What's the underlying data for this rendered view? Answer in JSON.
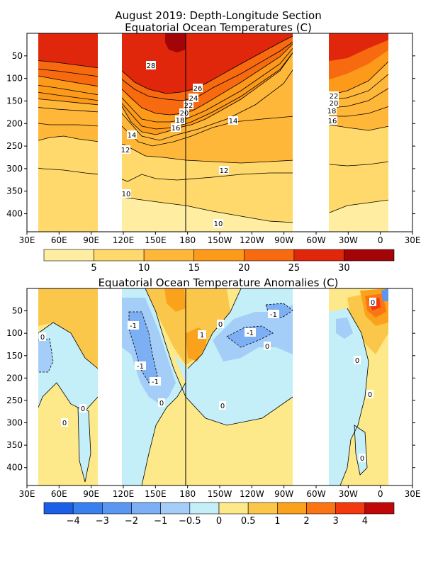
{
  "chart_data": [
    {
      "type": "heatmap",
      "title": "August 2019: Depth-Longitude Section",
      "subtitle": "Equatorial Ocean Temperatures (C)",
      "xlabel": "",
      "ylabel": "",
      "x_ticks": [
        "30E",
        "60E",
        "90E",
        "120E",
        "150E",
        "180",
        "150W",
        "120W",
        "90W",
        "60W",
        "30W",
        "0",
        "30E"
      ],
      "y_ticks": [
        "50",
        "100",
        "150",
        "200",
        "250",
        "300",
        "350",
        "400"
      ],
      "y_range": [
        0,
        440
      ],
      "x_range_lon_east": [
        30,
        390
      ],
      "land_gaps_lon_east": [
        [
          100,
          119
        ],
        [
          283,
          320
        ]
      ],
      "data_extent_lon_east": [
        45,
        354
      ],
      "colorbar": {
        "levels": [
          "5",
          "10",
          "15",
          "20",
          "25",
          "30"
        ],
        "colors": [
          "#ffeea2",
          "#ffd96b",
          "#ffb73a",
          "#fd9a1a",
          "#f76a10",
          "#e0260b",
          "#a30408"
        ]
      },
      "contour_labels": [
        "28",
        "26",
        "24",
        "22",
        "20",
        "18",
        "16",
        "14",
        "12",
        "10",
        "14",
        "12",
        "10",
        "22",
        "20",
        "18",
        "16"
      ]
    },
    {
      "type": "heatmap",
      "title": "Equatorial Ocean Temperature Anomalies (C)",
      "xlabel": "",
      "ylabel": "",
      "x_ticks": [
        "30E",
        "60E",
        "90E",
        "120E",
        "150E",
        "180",
        "150W",
        "120W",
        "90W",
        "60W",
        "30W",
        "0",
        "30E"
      ],
      "y_ticks": [
        "50",
        "100",
        "150",
        "200",
        "250",
        "300",
        "350",
        "400"
      ],
      "y_range": [
        0,
        440
      ],
      "colorbar": {
        "levels": [
          "−4",
          "−3",
          "−2",
          "−1",
          "−0.5",
          "0",
          "0.5",
          "1",
          "2",
          "3",
          "4"
        ],
        "colors": [
          "#1b5fe6",
          "#3a7fee",
          "#5b97f2",
          "#7daff4",
          "#a4cdf8",
          "#c4eef8",
          "#fde98a",
          "#fbc74a",
          "#fba21c",
          "#fb7514",
          "#f23a0e",
          "#c10808"
        ]
      },
      "contour_labels": [
        "-1",
        "1",
        "0",
        "-1",
        "-1",
        "0",
        "-1",
        "-1",
        "0",
        "0",
        "0",
        "0",
        "0",
        "0",
        "0",
        "0",
        "0"
      ]
    }
  ]
}
